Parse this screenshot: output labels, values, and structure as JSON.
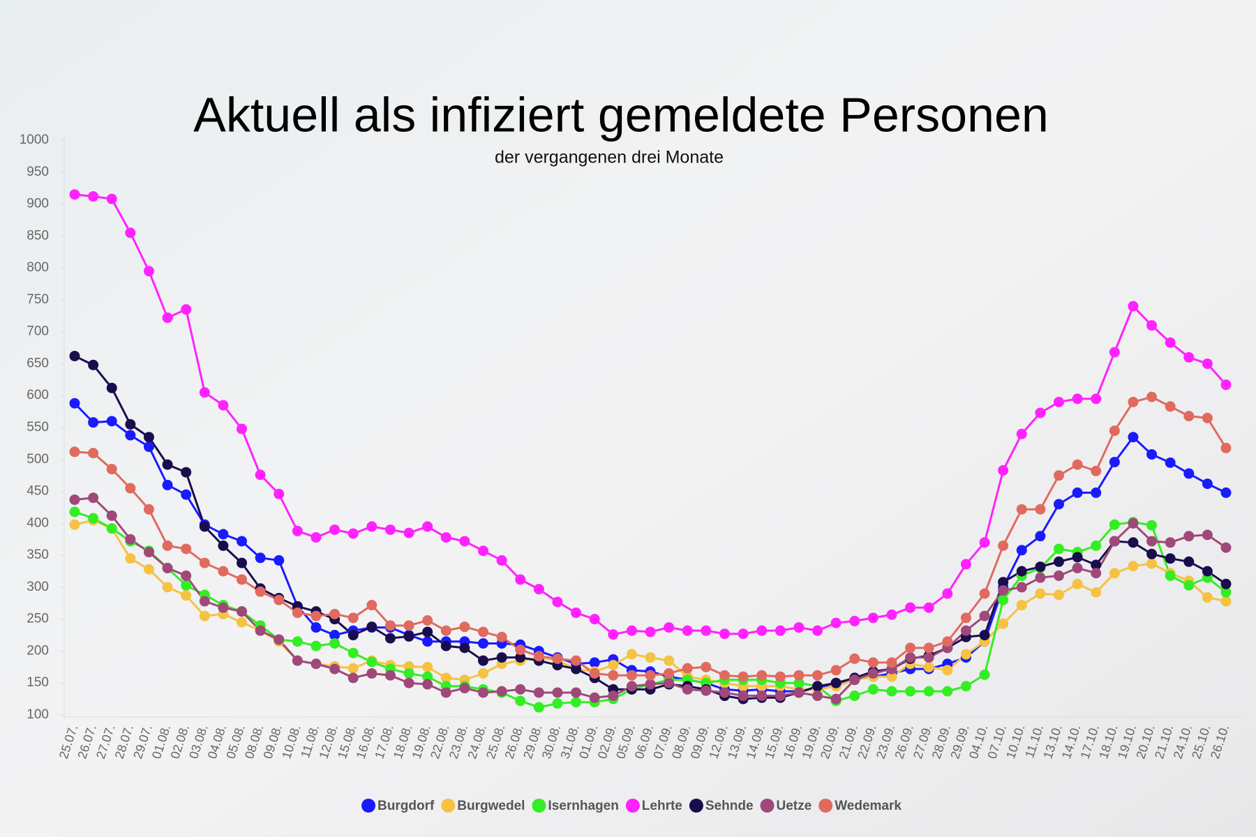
{
  "chart_data": {
    "type": "line",
    "title": "Aktuell als infiziert gemeldete Personen",
    "subtitle": "der vergangenen drei Monate",
    "categories": [
      "25.07.",
      "26.07.",
      "27.07.",
      "28.07.",
      "29.07.",
      "01.08.",
      "02.08.",
      "03.08.",
      "04.08.",
      "05.08.",
      "08.08.",
      "09.08.",
      "10.08.",
      "11.08.",
      "12.08.",
      "15.08.",
      "16.08.",
      "17.08.",
      "18.08.",
      "19.08.",
      "22.08.",
      "23.08.",
      "24.08.",
      "25.08.",
      "26.08.",
      "29.08.",
      "30.08.",
      "31.08.",
      "01.09.",
      "02.09.",
      "05.09.",
      "06.09.",
      "07.09.",
      "08.09.",
      "09.09.",
      "12.09.",
      "13.09.",
      "14.09.",
      "15.09.",
      "16.09.",
      "19.09.",
      "20.09.",
      "21.09.",
      "22.09.",
      "23.09.",
      "26.09.",
      "27.09.",
      "28.09.",
      "29.09.",
      "04.10.",
      "07.10.",
      "10.10.",
      "11.10.",
      "13.10.",
      "14.10.",
      "17.10.",
      "18.10.",
      "19.10.",
      "20.10.",
      "21.10.",
      "24.10.",
      "25.10.",
      "26.10."
    ],
    "series": [
      {
        "name": "Burgdorf",
        "color": "#1a1aff",
        "values": [
          588,
          558,
          560,
          538,
          520,
          460,
          445,
          398,
          383,
          372,
          346,
          342,
          270,
          237,
          225,
          232,
          237,
          237,
          225,
          215,
          215,
          215,
          212,
          212,
          210,
          200,
          190,
          180,
          182,
          187,
          170,
          168,
          160,
          155,
          150,
          140,
          138,
          140,
          137,
          137,
          142,
          150,
          155,
          160,
          165,
          172,
          172,
          180,
          190,
          215,
          300,
          358,
          380,
          430,
          448,
          448,
          496,
          535,
          508,
          495,
          478,
          462,
          448
        ]
      },
      {
        "name": "Burgwedel",
        "color": "#f5c242",
        "values": [
          398,
          405,
          392,
          345,
          328,
          300,
          287,
          255,
          258,
          245,
          232,
          215,
          185,
          180,
          176,
          173,
          185,
          178,
          176,
          175,
          158,
          155,
          165,
          180,
          185,
          190,
          185,
          172,
          168,
          178,
          195,
          190,
          185,
          160,
          155,
          150,
          145,
          145,
          145,
          140,
          140,
          145,
          155,
          160,
          160,
          180,
          175,
          170,
          195,
          215,
          243,
          272,
          290,
          288,
          305,
          292,
          322,
          333,
          337,
          322,
          310,
          284,
          278
        ]
      },
      {
        "name": "Isernhagen",
        "color": "#33ee22",
        "values": [
          418,
          408,
          392,
          372,
          357,
          330,
          303,
          288,
          272,
          262,
          240,
          218,
          215,
          208,
          212,
          197,
          183,
          172,
          165,
          160,
          145,
          145,
          140,
          135,
          122,
          112,
          118,
          120,
          120,
          125,
          140,
          148,
          155,
          155,
          150,
          155,
          155,
          155,
          150,
          150,
          145,
          122,
          130,
          140,
          137,
          137,
          137,
          137,
          145,
          163,
          280,
          318,
          330,
          360,
          355,
          365,
          398,
          402,
          397,
          318,
          303,
          315,
          292
        ]
      },
      {
        "name": "Lehrte",
        "color": "#ff22ff",
        "values": [
          915,
          912,
          908,
          855,
          795,
          722,
          735,
          605,
          585,
          548,
          476,
          446,
          388,
          378,
          390,
          384,
          395,
          390,
          385,
          395,
          378,
          372,
          357,
          342,
          312,
          297,
          277,
          260,
          250,
          226,
          232,
          230,
          237,
          232,
          232,
          227,
          227,
          232,
          232,
          237,
          232,
          244,
          247,
          252,
          257,
          268,
          268,
          290,
          336,
          370,
          483,
          540,
          573,
          590,
          595,
          595,
          668,
          740,
          710,
          683,
          660,
          650,
          617
        ]
      },
      {
        "name": "Sehnde",
        "color": "#1a0d4d",
        "values": [
          662,
          648,
          612,
          555,
          535,
          492,
          480,
          395,
          365,
          338,
          298,
          283,
          270,
          262,
          250,
          225,
          238,
          220,
          223,
          230,
          208,
          205,
          185,
          190,
          190,
          185,
          178,
          172,
          158,
          140,
          140,
          140,
          148,
          145,
          140,
          130,
          125,
          127,
          127,
          135,
          145,
          150,
          158,
          168,
          172,
          188,
          193,
          205,
          222,
          225,
          308,
          325,
          332,
          340,
          347,
          335,
          372,
          370,
          352,
          345,
          340,
          325,
          305
        ]
      },
      {
        "name": "Uetze",
        "color": "#a0487a",
        "values": [
          437,
          440,
          412,
          375,
          355,
          330,
          318,
          278,
          268,
          262,
          232,
          218,
          185,
          180,
          172,
          158,
          165,
          162,
          150,
          148,
          135,
          142,
          135,
          137,
          140,
          135,
          135,
          135,
          127,
          130,
          145,
          148,
          150,
          140,
          138,
          135,
          130,
          130,
          130,
          135,
          130,
          125,
          155,
          165,
          172,
          190,
          190,
          205,
          232,
          255,
          295,
          300,
          315,
          318,
          330,
          322,
          372,
          400,
          372,
          370,
          380,
          382,
          362
        ]
      },
      {
        "name": "Wedemark",
        "color": "#e06a5e",
        "values": [
          512,
          510,
          485,
          455,
          422,
          365,
          360,
          338,
          325,
          312,
          293,
          280,
          260,
          255,
          258,
          252,
          272,
          240,
          240,
          248,
          232,
          238,
          230,
          222,
          202,
          192,
          188,
          185,
          165,
          162,
          162,
          162,
          165,
          173,
          175,
          162,
          160,
          162,
          160,
          162,
          162,
          170,
          188,
          182,
          182,
          205,
          205,
          215,
          252,
          290,
          365,
          422,
          422,
          475,
          492,
          482,
          545,
          590,
          598,
          583,
          568,
          565,
          518
        ]
      }
    ],
    "ylim": [
      100,
      1000
    ],
    "yticks": [
      100,
      150,
      200,
      250,
      300,
      350,
      400,
      450,
      500,
      550,
      600,
      650,
      700,
      750,
      800,
      850,
      900,
      950,
      1000
    ],
    "grid": false
  }
}
